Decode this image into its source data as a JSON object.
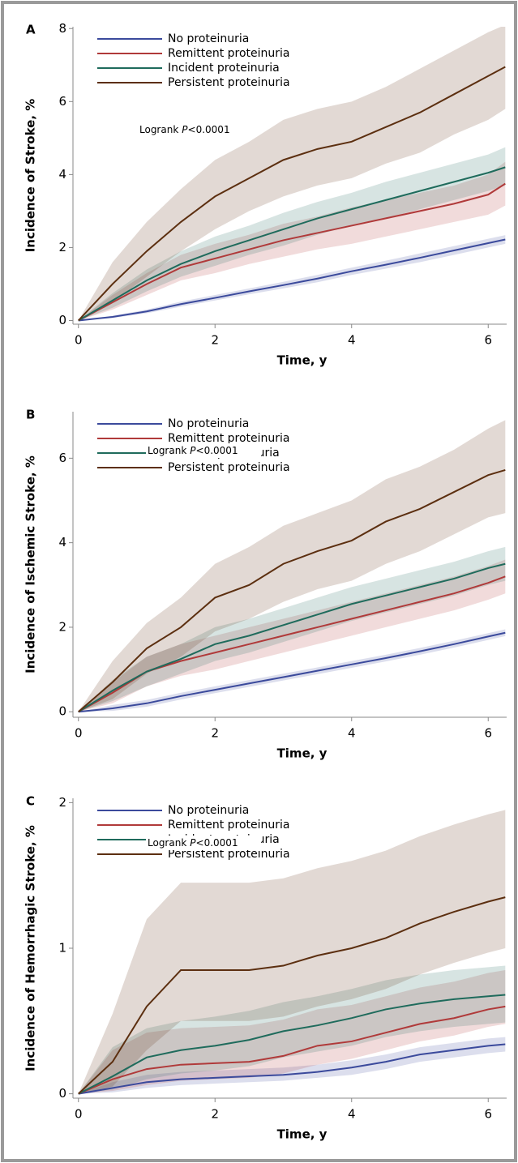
{
  "chart_data": [
    {
      "type": "line",
      "panel": "A",
      "ylabel": "Incidence of Stroke, %",
      "xlabel": "Time, y",
      "annotation_parts": [
        "Logrank",
        "P",
        "<0.0001"
      ],
      "x": [
        0,
        0.5,
        1,
        1.5,
        2,
        2.5,
        3,
        3.5,
        4,
        4.5,
        5,
        5.5,
        6,
        6.25
      ],
      "xlim": [
        -0.08,
        6.27
      ],
      "xticks": [
        0,
        2,
        4,
        6
      ],
      "ylim": [
        -0.1,
        8.05
      ],
      "yticks": [
        0,
        2,
        4,
        6,
        8
      ],
      "series": [
        {
          "name": "No proteinuria",
          "color": "#3b4a9c",
          "values": [
            0,
            0.1,
            0.25,
            0.45,
            0.62,
            0.8,
            0.97,
            1.15,
            1.35,
            1.53,
            1.72,
            1.92,
            2.12,
            2.22
          ],
          "lower": [
            0,
            0.07,
            0.2,
            0.38,
            0.55,
            0.72,
            0.88,
            1.05,
            1.25,
            1.42,
            1.6,
            1.8,
            2.0,
            2.1
          ],
          "upper": [
            0,
            0.13,
            0.3,
            0.52,
            0.7,
            0.88,
            1.06,
            1.25,
            1.45,
            1.64,
            1.84,
            2.04,
            2.24,
            2.34
          ]
        },
        {
          "name": "Remittent proteinuria",
          "color": "#b03a3a",
          "values": [
            0,
            0.5,
            1.0,
            1.45,
            1.7,
            1.95,
            2.2,
            2.4,
            2.6,
            2.8,
            3.0,
            3.2,
            3.45,
            3.75
          ],
          "lower": [
            0,
            0.3,
            0.7,
            1.1,
            1.3,
            1.55,
            1.75,
            1.95,
            2.1,
            2.3,
            2.5,
            2.7,
            2.9,
            3.15
          ],
          "upper": [
            0,
            0.7,
            1.3,
            1.8,
            2.1,
            2.35,
            2.65,
            2.85,
            3.1,
            3.3,
            3.5,
            3.7,
            4.0,
            4.35
          ]
        },
        {
          "name": "Incident proteinuria",
          "color": "#1f6b5c",
          "values": [
            0,
            0.55,
            1.1,
            1.55,
            1.9,
            2.2,
            2.5,
            2.8,
            3.05,
            3.3,
            3.55,
            3.8,
            4.05,
            4.2
          ],
          "lower": [
            0,
            0.35,
            0.8,
            1.2,
            1.5,
            1.8,
            2.05,
            2.35,
            2.6,
            2.8,
            3.05,
            3.3,
            3.55,
            3.7
          ],
          "upper": [
            0,
            0.75,
            1.4,
            1.9,
            2.3,
            2.6,
            2.95,
            3.25,
            3.5,
            3.8,
            4.05,
            4.3,
            4.55,
            4.75
          ]
        },
        {
          "name": "Persistent proteinuria",
          "color": "#5c2f10",
          "values": [
            0,
            1.0,
            1.9,
            2.7,
            3.4,
            3.9,
            4.4,
            4.7,
            4.9,
            5.3,
            5.7,
            6.2,
            6.7,
            6.95
          ],
          "lower": [
            0,
            0.5,
            1.2,
            1.9,
            2.5,
            3.0,
            3.4,
            3.7,
            3.9,
            4.3,
            4.6,
            5.1,
            5.5,
            5.8
          ],
          "upper": [
            0,
            1.6,
            2.7,
            3.6,
            4.4,
            4.9,
            5.5,
            5.8,
            6.0,
            6.4,
            6.9,
            7.4,
            7.9,
            8.1
          ]
        }
      ]
    },
    {
      "type": "line",
      "panel": "B",
      "ylabel": "Incidence of Ischemic Stroke, %",
      "xlabel": "Time, y",
      "annotation_parts": [
        "Logrank",
        "P",
        "<0.0001"
      ],
      "x": [
        0,
        0.5,
        1,
        1.5,
        2,
        2.5,
        3,
        3.5,
        4,
        4.5,
        5,
        5.5,
        6,
        6.25
      ],
      "xlim": [
        -0.08,
        6.27
      ],
      "xticks": [
        0,
        2,
        4,
        6
      ],
      "ylim": [
        -0.13,
        7.1
      ],
      "yticks": [
        0,
        2,
        4,
        6
      ],
      "series": [
        {
          "name": "No proteinuria",
          "color": "#3b4a9c",
          "values": [
            0,
            0.08,
            0.2,
            0.37,
            0.52,
            0.67,
            0.82,
            0.97,
            1.12,
            1.27,
            1.43,
            1.6,
            1.78,
            1.87
          ],
          "lower": [
            0,
            0.02,
            0.12,
            0.29,
            0.44,
            0.59,
            0.74,
            0.89,
            1.04,
            1.19,
            1.35,
            1.52,
            1.7,
            1.79
          ],
          "upper": [
            0,
            0.16,
            0.28,
            0.45,
            0.6,
            0.75,
            0.9,
            1.05,
            1.2,
            1.35,
            1.51,
            1.68,
            1.86,
            1.95
          ]
        },
        {
          "name": "Remittent proteinuria",
          "color": "#b03a3a",
          "values": [
            0,
            0.45,
            0.95,
            1.2,
            1.4,
            1.6,
            1.8,
            2.0,
            2.2,
            2.4,
            2.6,
            2.8,
            3.05,
            3.2
          ],
          "lower": [
            0,
            0.2,
            0.6,
            0.85,
            1.0,
            1.2,
            1.4,
            1.6,
            1.8,
            2.0,
            2.2,
            2.4,
            2.65,
            2.8
          ],
          "upper": [
            0,
            0.7,
            1.3,
            1.6,
            1.8,
            2.0,
            2.2,
            2.4,
            2.6,
            2.8,
            3.0,
            3.2,
            3.45,
            3.6
          ]
        },
        {
          "name": "Incident proteinuria",
          "color": "#1f6b5c",
          "values": [
            0,
            0.5,
            0.95,
            1.25,
            1.6,
            1.8,
            2.05,
            2.3,
            2.55,
            2.75,
            2.95,
            3.15,
            3.4,
            3.5
          ],
          "lower": [
            0,
            0.25,
            0.6,
            0.9,
            1.2,
            1.4,
            1.65,
            1.9,
            2.15,
            2.35,
            2.55,
            2.75,
            3.0,
            3.1
          ],
          "upper": [
            0,
            0.75,
            1.3,
            1.6,
            2.0,
            2.2,
            2.45,
            2.7,
            2.95,
            3.15,
            3.35,
            3.55,
            3.8,
            3.9
          ]
        },
        {
          "name": "Persistent proteinuria",
          "color": "#5c2f10",
          "values": [
            0,
            0.7,
            1.5,
            2.0,
            2.7,
            3.0,
            3.5,
            3.8,
            4.05,
            4.5,
            4.8,
            5.2,
            5.6,
            5.72
          ],
          "lower": [
            0,
            0.3,
            0.9,
            1.3,
            1.9,
            2.2,
            2.6,
            2.9,
            3.1,
            3.5,
            3.8,
            4.2,
            4.6,
            4.7
          ],
          "upper": [
            0,
            1.2,
            2.1,
            2.7,
            3.5,
            3.9,
            4.4,
            4.7,
            5.0,
            5.5,
            5.8,
            6.2,
            6.7,
            6.9
          ]
        }
      ]
    },
    {
      "type": "line",
      "panel": "C",
      "ylabel": "Incidence of Hemorrhagic Stroke, %",
      "xlabel": "Time, y",
      "annotation_parts": [
        "Logrank",
        "P",
        "<0.0001"
      ],
      "x": [
        0,
        0.5,
        1,
        1.5,
        2,
        2.5,
        3,
        3.5,
        4,
        4.5,
        5,
        5.5,
        6,
        6.25
      ],
      "xlim": [
        -0.08,
        6.27
      ],
      "xticks": [
        0,
        2,
        4,
        6
      ],
      "ylim": [
        -0.03,
        2.03
      ],
      "yticks": [
        0,
        1,
        2
      ],
      "series": [
        {
          "name": "No proteinuria",
          "color": "#3b4a9c",
          "values": [
            0,
            0.04,
            0.08,
            0.1,
            0.11,
            0.12,
            0.13,
            0.15,
            0.18,
            0.22,
            0.27,
            0.3,
            0.33,
            0.34
          ],
          "lower": [
            0,
            0.01,
            0.04,
            0.06,
            0.07,
            0.08,
            0.09,
            0.11,
            0.13,
            0.17,
            0.22,
            0.25,
            0.28,
            0.29
          ],
          "upper": [
            0,
            0.08,
            0.13,
            0.15,
            0.16,
            0.17,
            0.18,
            0.2,
            0.23,
            0.27,
            0.32,
            0.35,
            0.38,
            0.39
          ]
        },
        {
          "name": "Remittent proteinuria",
          "color": "#b03a3a",
          "values": [
            0,
            0.1,
            0.17,
            0.2,
            0.21,
            0.22,
            0.26,
            0.33,
            0.36,
            0.42,
            0.48,
            0.52,
            0.58,
            0.6
          ],
          "lower": [
            0,
            0.02,
            0.06,
            0.09,
            0.1,
            0.11,
            0.14,
            0.2,
            0.24,
            0.3,
            0.36,
            0.4,
            0.46,
            0.48
          ],
          "upper": [
            0,
            0.3,
            0.42,
            0.45,
            0.46,
            0.47,
            0.51,
            0.58,
            0.61,
            0.67,
            0.73,
            0.77,
            0.83,
            0.85
          ]
        },
        {
          "name": "Incident proteinuria",
          "color": "#1f6b5c",
          "values": [
            0,
            0.12,
            0.25,
            0.3,
            0.33,
            0.37,
            0.43,
            0.47,
            0.52,
            0.58,
            0.62,
            0.65,
            0.67,
            0.68
          ],
          "lower": [
            0,
            0.03,
            0.1,
            0.14,
            0.16,
            0.19,
            0.25,
            0.29,
            0.33,
            0.39,
            0.43,
            0.46,
            0.48,
            0.49
          ],
          "upper": [
            0,
            0.32,
            0.45,
            0.5,
            0.53,
            0.57,
            0.63,
            0.67,
            0.72,
            0.78,
            0.82,
            0.85,
            0.87,
            0.88
          ]
        },
        {
          "name": "Persistent proteinuria",
          "color": "#5c2f10",
          "values": [
            0,
            0.22,
            0.6,
            0.85,
            0.85,
            0.85,
            0.88,
            0.95,
            1.0,
            1.07,
            1.17,
            1.25,
            1.32,
            1.35
          ],
          "lower": [
            0,
            0.05,
            0.3,
            0.5,
            0.5,
            0.5,
            0.53,
            0.6,
            0.65,
            0.72,
            0.82,
            0.9,
            0.97,
            1.0
          ],
          "upper": [
            0,
            0.55,
            1.2,
            1.45,
            1.45,
            1.45,
            1.48,
            1.55,
            1.6,
            1.67,
            1.77,
            1.85,
            1.92,
            1.95
          ]
        }
      ]
    }
  ]
}
